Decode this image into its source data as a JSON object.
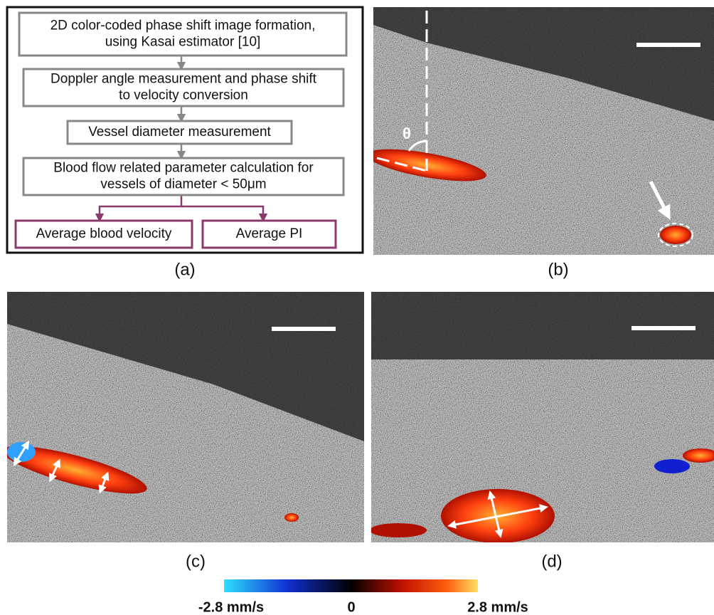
{
  "flowchart": {
    "nodes": [
      {
        "lines": [
          "2D color-coded phase shift image formation,",
          "using Kasai estimator [10]"
        ]
      },
      {
        "lines": [
          "Doppler angle measurement and phase shift",
          "to velocity conversion"
        ]
      },
      {
        "lines": [
          "Vessel diameter measurement"
        ]
      },
      {
        "lines": [
          "Blood flow related parameter calculation for",
          "vessels of diameter < 50μm"
        ]
      },
      {
        "lines": [
          "Average blood velocity"
        ]
      },
      {
        "lines": [
          "Average PI"
        ]
      }
    ]
  },
  "panels": [
    "(a)",
    "(b)",
    "(c)",
    "(d)"
  ],
  "annotations": {
    "angle": "θ"
  },
  "colorbar": {
    "labels": [
      "-2.8 mm/s",
      "0",
      "2.8 mm/s"
    ]
  }
}
